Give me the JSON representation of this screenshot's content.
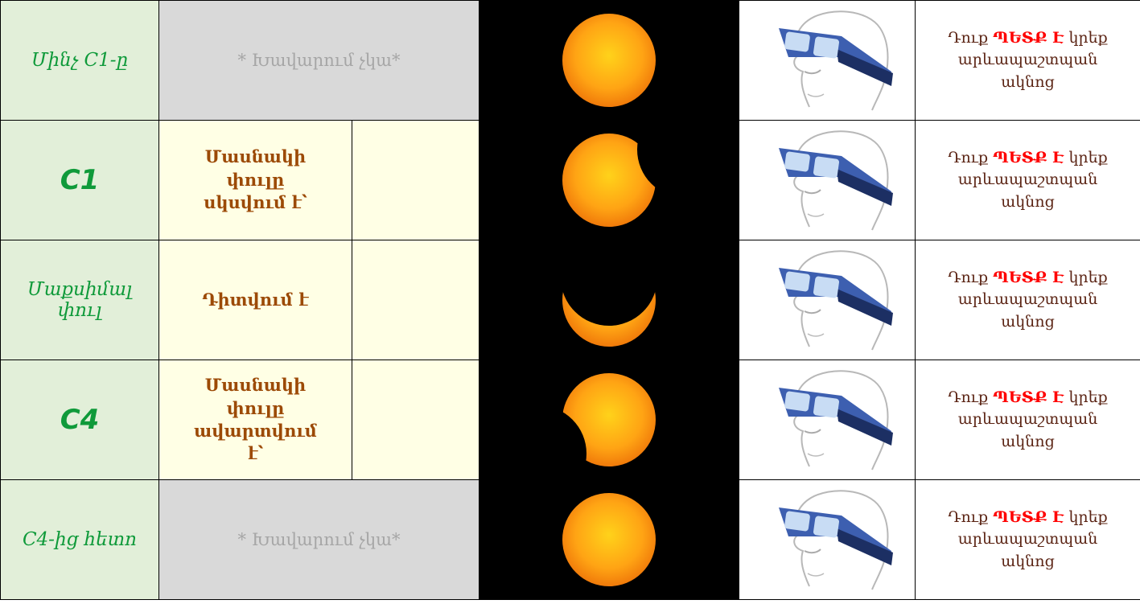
{
  "table": {
    "rows": [
      {
        "phase": "Մինչ C1-ը",
        "note": "* Խավարում չկա*",
        "advice": {
          "before": "Դուք",
          "emphasis": "ՊԵՏՔ Է",
          "after": "կրեք արևապաշտպան ակնոց"
        }
      },
      {
        "phase": "C1",
        "state": "Մասնակի փուլը սկսվում է՝",
        "advice": {
          "before": "Դուք",
          "emphasis": "ՊԵՏՔ Է",
          "after": "կրեք արևապաշտպան ակնոց"
        }
      },
      {
        "phase": "Մաքսիմալ փուլ",
        "state": "Դիտվում է",
        "advice": {
          "before": "Դուք",
          "emphasis": "ՊԵՏՔ Է",
          "after": "կրեք արևապաշտպան ակնոց"
        }
      },
      {
        "phase": "C4",
        "state": "Մասնակի փուլը ավարտվում է՝",
        "advice": {
          "before": "Դուք",
          "emphasis": "ՊԵՏՔ Է",
          "after": "կրեք արևապաշտպան ակնոց"
        }
      },
      {
        "phase": "C4-ից հետո",
        "note": "* Խավարում չկա*",
        "advice": {
          "before": "Դուք",
          "emphasis": "ՊԵՏՔ Է",
          "after": "կրեք արևապաշտպան ակնոց"
        }
      }
    ]
  }
}
